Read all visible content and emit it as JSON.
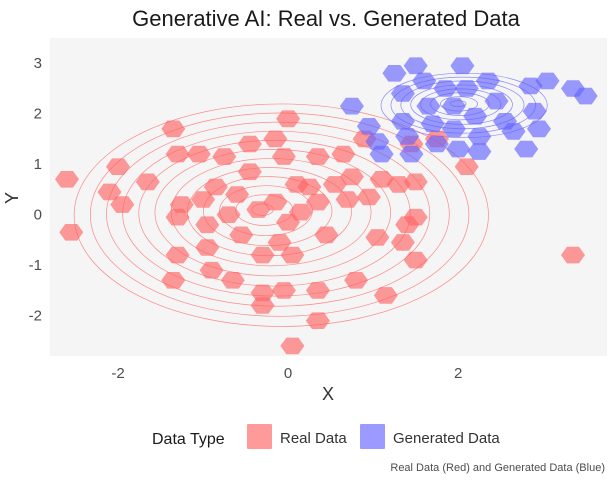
{
  "chart_data": {
    "type": "hexbin-density",
    "title": "Generative AI: Real vs. Generated Data",
    "xlabel": "X",
    "ylabel": "Y",
    "xlim": [
      -2.8,
      3.75
    ],
    "ylim": [
      -2.8,
      3.5
    ],
    "xticks": [
      -2,
      0,
      2
    ],
    "yticks": [
      -2,
      -1,
      0,
      1,
      2,
      3
    ],
    "grid": false,
    "legend": {
      "title": "Data Type",
      "placement": "bottom",
      "entries": [
        "Real Data",
        "Generated Data"
      ]
    },
    "caption": "Real Data (Red) and Generated Data (Blue)",
    "colors": {
      "real": "#ff6464",
      "generated": "#6464ff",
      "panel": "#f5f5f5"
    },
    "series": [
      {
        "name": "Real Data",
        "hex_centers": [
          [
            -2.6,
            0.7
          ],
          [
            -2.55,
            -0.35
          ],
          [
            -2.1,
            0.45
          ],
          [
            -2.0,
            0.95
          ],
          [
            -1.95,
            0.2
          ],
          [
            -1.65,
            0.65
          ],
          [
            -1.35,
            1.7
          ],
          [
            -1.3,
            1.2
          ],
          [
            -1.25,
            0.2
          ],
          [
            -1.3,
            -0.05
          ],
          [
            -1.3,
            -0.8
          ],
          [
            -1.35,
            -1.3
          ],
          [
            -1.05,
            1.2
          ],
          [
            -1.0,
            0.3
          ],
          [
            -0.95,
            -0.2
          ],
          [
            -0.95,
            -0.65
          ],
          [
            -0.9,
            -1.1
          ],
          [
            -0.85,
            0.55
          ],
          [
            -0.75,
            1.15
          ],
          [
            -0.7,
            0.0
          ],
          [
            -0.65,
            -1.3
          ],
          [
            -0.6,
            0.4
          ],
          [
            -0.55,
            -0.4
          ],
          [
            -0.45,
            1.4
          ],
          [
            -0.45,
            0.85
          ],
          [
            -0.35,
            0.1
          ],
          [
            -0.3,
            -0.8
          ],
          [
            -0.3,
            -1.55
          ],
          [
            -0.3,
            -1.8
          ],
          [
            -0.15,
            1.5
          ],
          [
            -0.15,
            0.25
          ],
          [
            -0.1,
            -0.55
          ],
          [
            -0.05,
            1.15
          ],
          [
            -0.05,
            -1.5
          ],
          [
            0.0,
            1.9
          ],
          [
            0.0,
            -0.15
          ],
          [
            0.05,
            -0.8
          ],
          [
            0.05,
            -2.6
          ],
          [
            0.1,
            0.6
          ],
          [
            0.15,
            0.05
          ],
          [
            0.25,
            0.55
          ],
          [
            0.35,
            1.15
          ],
          [
            0.35,
            0.25
          ],
          [
            0.35,
            -1.5
          ],
          [
            0.35,
            -2.1
          ],
          [
            0.45,
            -0.4
          ],
          [
            0.55,
            0.6
          ],
          [
            0.65,
            1.2
          ],
          [
            0.7,
            0.3
          ],
          [
            0.75,
            0.75
          ],
          [
            0.8,
            -1.3
          ],
          [
            0.9,
            1.5
          ],
          [
            0.95,
            0.35
          ],
          [
            1.05,
            -0.45
          ],
          [
            1.1,
            0.7
          ],
          [
            1.15,
            -1.6
          ],
          [
            1.3,
            0.6
          ],
          [
            1.35,
            -0.55
          ],
          [
            1.4,
            -0.2
          ],
          [
            1.45,
            1.4
          ],
          [
            1.5,
            -0.05
          ],
          [
            1.5,
            0.65
          ],
          [
            1.5,
            -0.9
          ],
          [
            1.75,
            1.5
          ],
          [
            2.1,
            0.95
          ],
          [
            3.35,
            -0.8
          ]
        ],
        "contour_center": [
          -0.3,
          0.1
        ]
      },
      {
        "name": "Generated Data",
        "hex_centers": [
          [
            0.75,
            2.15
          ],
          [
            0.95,
            1.75
          ],
          [
            1.05,
            1.45
          ],
          [
            1.1,
            1.2
          ],
          [
            1.25,
            2.8
          ],
          [
            1.35,
            2.4
          ],
          [
            1.35,
            1.85
          ],
          [
            1.4,
            1.55
          ],
          [
            1.45,
            1.2
          ],
          [
            1.5,
            2.95
          ],
          [
            1.6,
            2.65
          ],
          [
            1.65,
            2.15
          ],
          [
            1.7,
            1.8
          ],
          [
            1.75,
            1.4
          ],
          [
            1.85,
            2.5
          ],
          [
            1.95,
            2.15
          ],
          [
            1.95,
            1.7
          ],
          [
            2.0,
            1.3
          ],
          [
            2.05,
            2.95
          ],
          [
            2.1,
            2.5
          ],
          [
            2.2,
            1.95
          ],
          [
            2.25,
            1.55
          ],
          [
            2.35,
            2.65
          ],
          [
            2.45,
            2.25
          ],
          [
            2.55,
            1.85
          ],
          [
            2.65,
            1.65
          ],
          [
            2.8,
            1.3
          ],
          [
            2.9,
            2.05
          ],
          [
            2.95,
            1.7
          ],
          [
            2.85,
            2.55
          ],
          [
            3.05,
            2.65
          ],
          [
            3.35,
            2.5
          ],
          [
            3.5,
            2.35
          ],
          [
            2.25,
            1.25
          ]
        ],
        "contour_center": [
          2.0,
          2.2
        ]
      }
    ]
  }
}
